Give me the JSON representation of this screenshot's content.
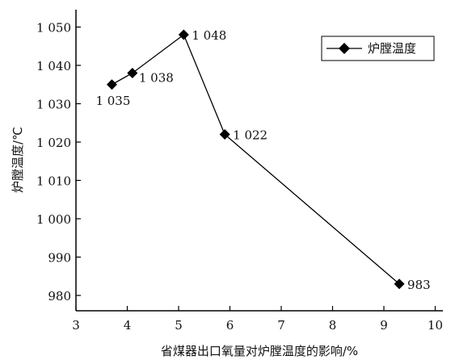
{
  "chart_data": {
    "type": "line",
    "xlabel": "省煤器出口氧量对炉膛温度的影响/%",
    "ylabel": "炉膛温度/℃",
    "xlim": [
      3,
      10
    ],
    "ylim": [
      975,
      1055
    ],
    "x_ticks": [
      3,
      4,
      5,
      6,
      7,
      8,
      9,
      10
    ],
    "x_tick_labels": [
      "3",
      "4",
      "5",
      "6",
      "7",
      "8",
      "9",
      "10"
    ],
    "y_ticks": [
      980,
      990,
      1000,
      1010,
      1020,
      1030,
      1040,
      1050
    ],
    "y_tick_labels": [
      "980",
      "990",
      "1 000",
      "1 010",
      "1 020",
      "1 030",
      "1 040",
      "1 050"
    ],
    "grid": false,
    "legend_position": "top-right",
    "series": [
      {
        "name": "炉膛温度",
        "marker": "diamond",
        "color": "#000000",
        "x": [
          3.7,
          4.1,
          5.1,
          5.9,
          9.3
        ],
        "y": [
          1035,
          1038,
          1048,
          1022,
          983
        ],
        "data_labels": [
          "1 035",
          "1 038",
          "1 048",
          "1 022",
          "983"
        ]
      }
    ]
  }
}
